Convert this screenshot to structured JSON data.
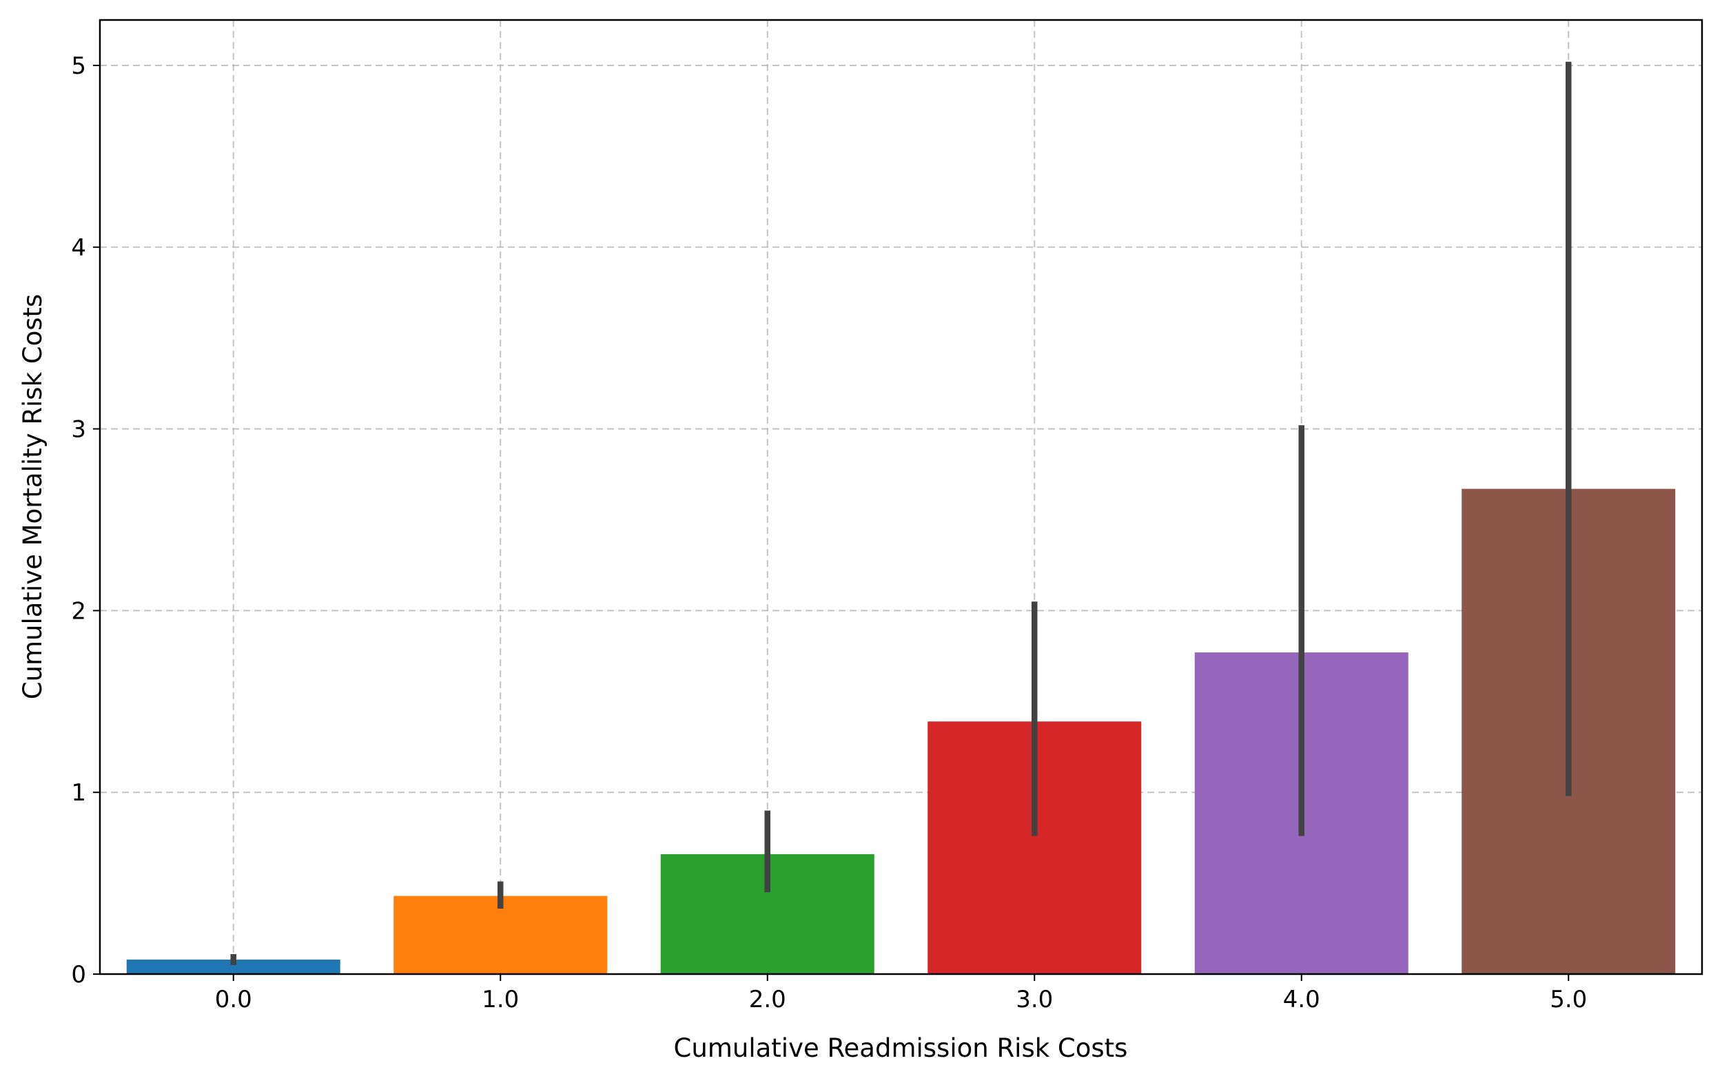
{
  "chart_data": {
    "type": "bar",
    "title": "",
    "xlabel": "Cumulative Readmission Risk Costs",
    "ylabel": "Cumulative Mortality Risk Costs",
    "categories": [
      "0.0",
      "1.0",
      "2.0",
      "3.0",
      "4.0",
      "5.0"
    ],
    "values": [
      0.08,
      0.43,
      0.66,
      1.39,
      1.77,
      2.67
    ],
    "error_bars": [
      {
        "low": 0.05,
        "high": 0.11
      },
      {
        "low": 0.36,
        "high": 0.51
      },
      {
        "low": 0.45,
        "high": 0.9
      },
      {
        "low": 0.76,
        "high": 2.05
      },
      {
        "low": 0.76,
        "high": 3.02
      },
      {
        "low": 0.98,
        "high": 5.02
      }
    ],
    "colors": [
      "#1f77b4",
      "#ff7f0e",
      "#2ca02c",
      "#d62728",
      "#9467bd",
      "#8c564b"
    ],
    "error_color": "#424242",
    "yticks": [
      "0",
      "1",
      "2",
      "3",
      "4",
      "5"
    ],
    "ylim": [
      0,
      5.25
    ],
    "grid": true,
    "legend": "none"
  }
}
